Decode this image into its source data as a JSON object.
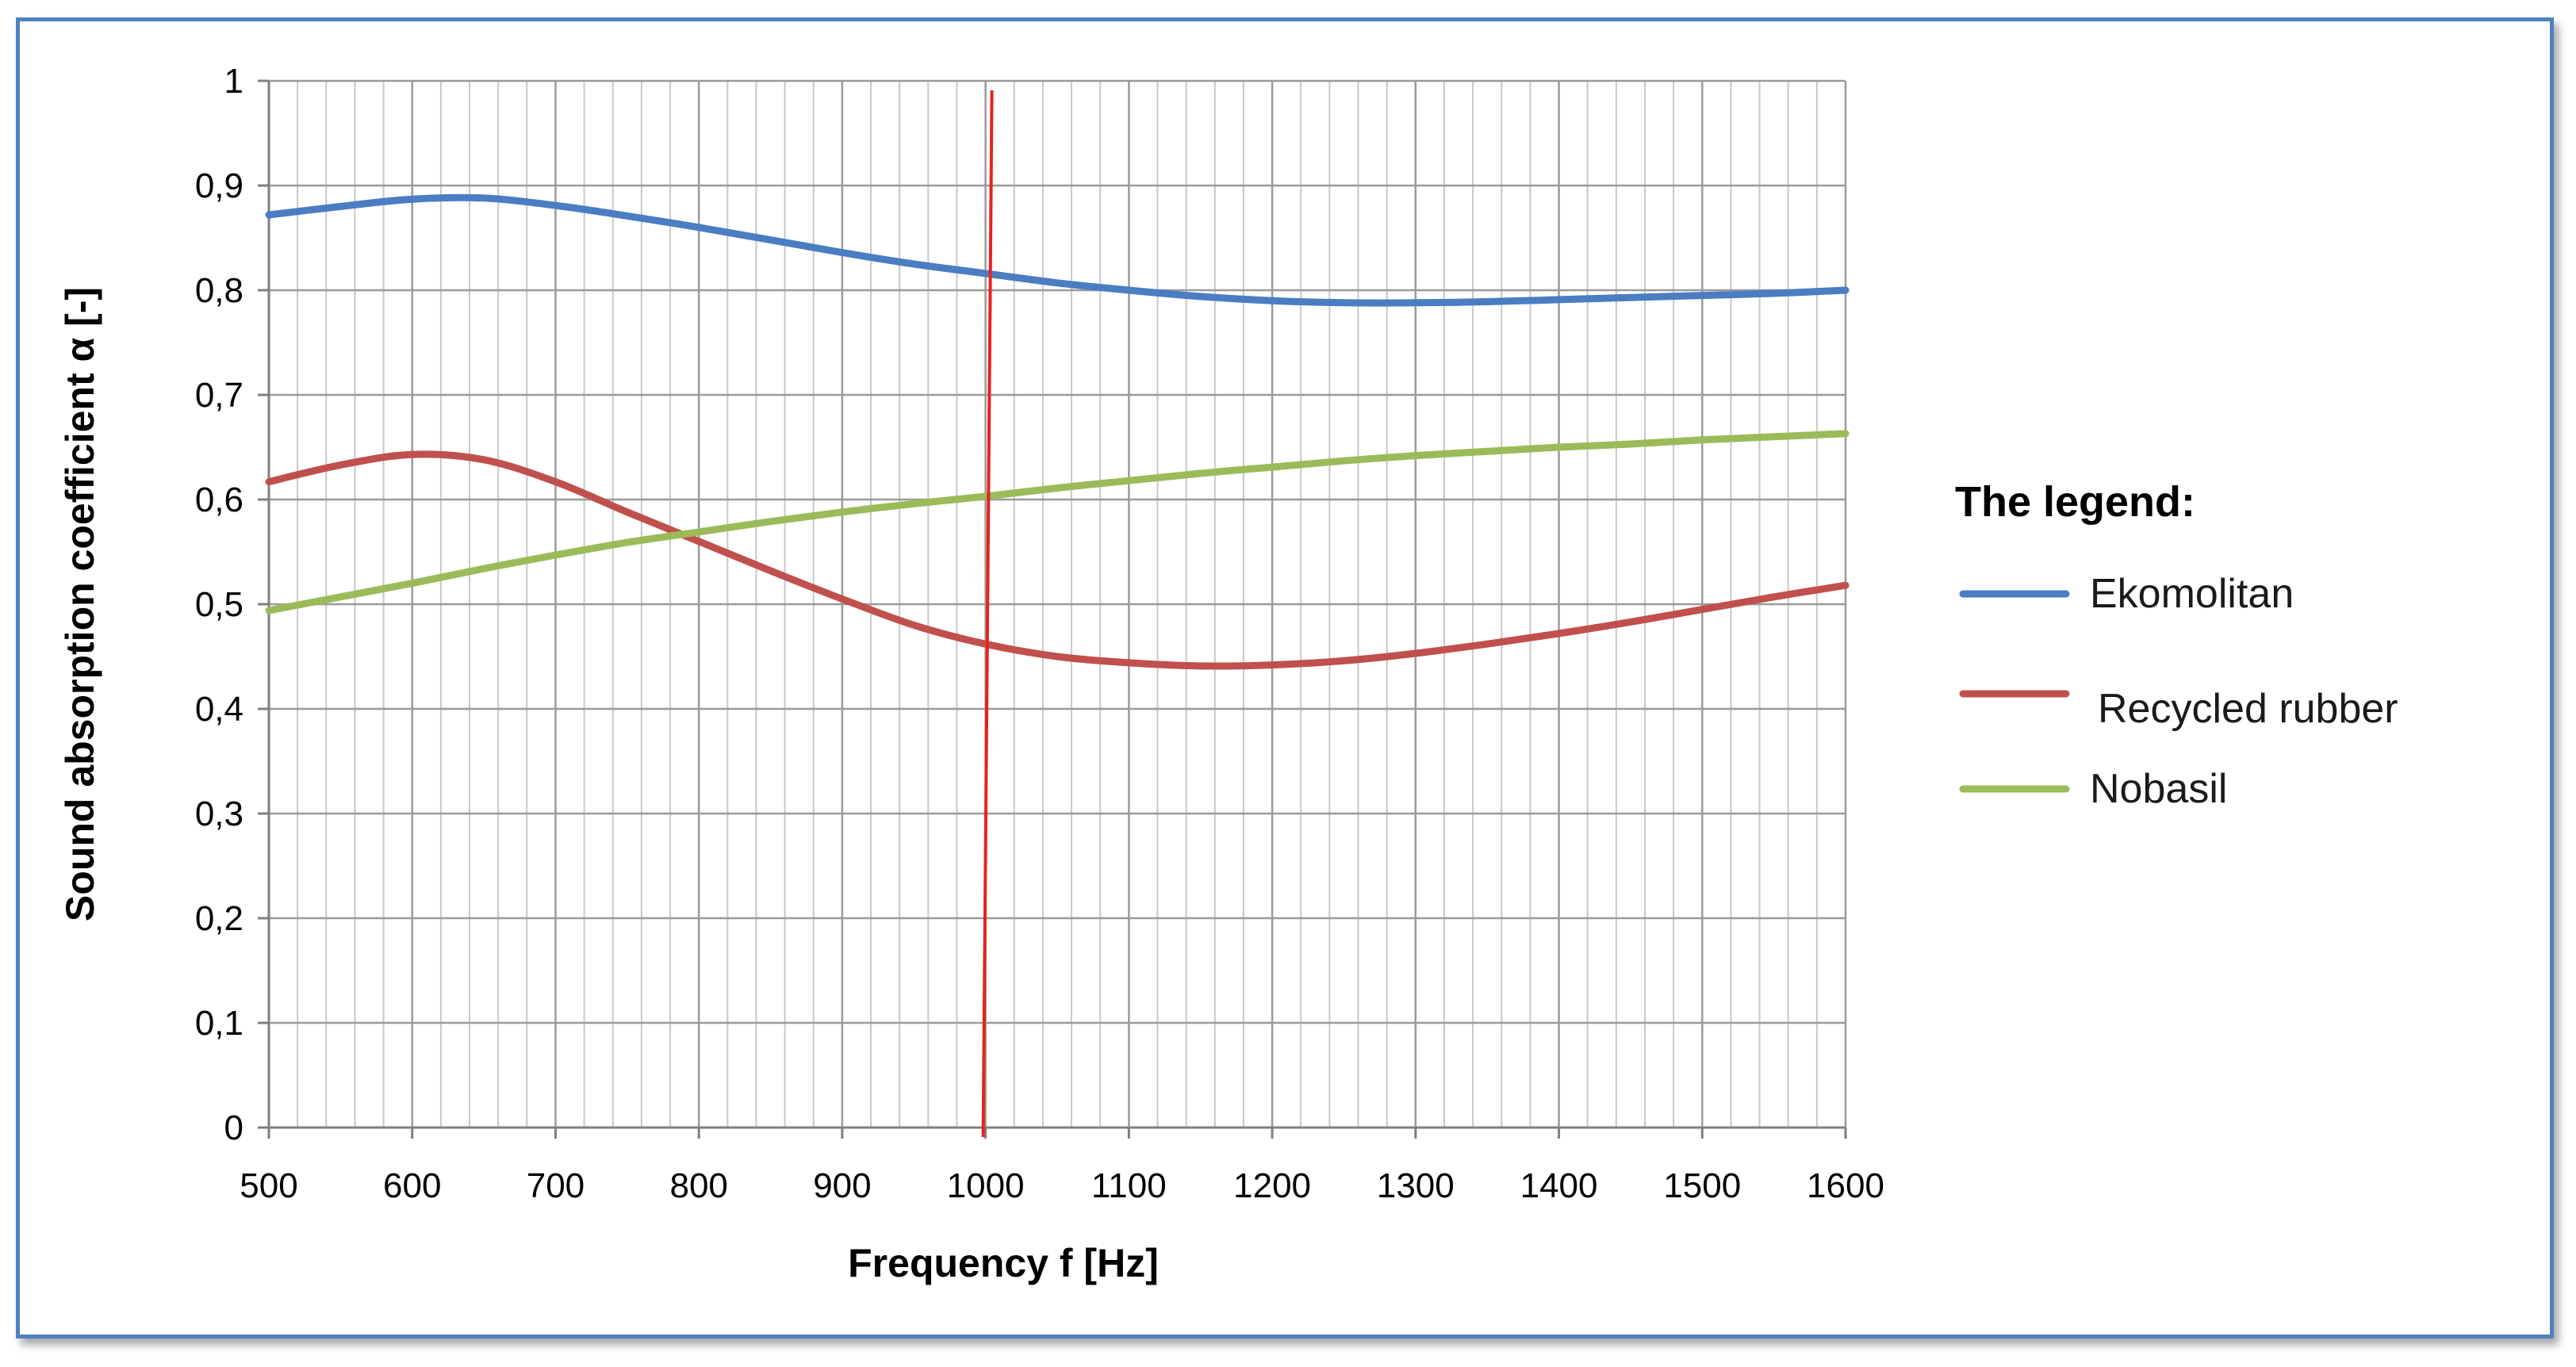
{
  "chart_data": {
    "type": "line",
    "title": "",
    "xlabel": "Frequency f [Hz]",
    "ylabel": "Sound absorption coefficient α [-]",
    "xlim": [
      500,
      1600
    ],
    "ylim": [
      0,
      1
    ],
    "x_ticks": [
      "500",
      "600",
      "700",
      "800",
      "900",
      "1000",
      "1100",
      "1200",
      "1300",
      "1400",
      "1500",
      "1600"
    ],
    "y_ticks": [
      "0",
      "0,1",
      "0,2",
      "0,3",
      "0,4",
      "0,5",
      "0,6",
      "0,7",
      "0,8",
      "0,9",
      "1"
    ],
    "grid": true,
    "legend_title": "The legend:",
    "legend_position": "right",
    "series": [
      {
        "name": "Ekomolitan",
        "color": "#4a7dc1",
        "x": [
          500,
          550,
          600,
          650,
          700,
          750,
          800,
          850,
          900,
          950,
          1000,
          1050,
          1100,
          1150,
          1200,
          1250,
          1300,
          1350,
          1400,
          1450,
          1500,
          1550,
          1600
        ],
        "y": [
          0.872,
          0.88,
          0.887,
          0.888,
          0.881,
          0.871,
          0.86,
          0.848,
          0.836,
          0.825,
          0.816,
          0.807,
          0.8,
          0.794,
          0.79,
          0.788,
          0.788,
          0.789,
          0.791,
          0.793,
          0.795,
          0.797,
          0.8
        ]
      },
      {
        "name": "Recycled rubber",
        "color": "#c0504d",
        "x": [
          500,
          550,
          600,
          650,
          700,
          750,
          800,
          850,
          900,
          950,
          1000,
          1050,
          1100,
          1150,
          1200,
          1250,
          1300,
          1350,
          1400,
          1450,
          1500,
          1550,
          1600
        ],
        "y": [
          0.617,
          0.633,
          0.643,
          0.638,
          0.617,
          0.588,
          0.56,
          0.532,
          0.505,
          0.48,
          0.462,
          0.45,
          0.444,
          0.441,
          0.442,
          0.446,
          0.453,
          0.462,
          0.472,
          0.483,
          0.495,
          0.507,
          0.518
        ]
      },
      {
        "name": "Nobasil",
        "color": "#9bbb59",
        "x": [
          500,
          550,
          600,
          650,
          700,
          750,
          800,
          850,
          900,
          950,
          1000,
          1050,
          1100,
          1150,
          1200,
          1250,
          1300,
          1350,
          1400,
          1450,
          1500,
          1550,
          1600
        ],
        "y": [
          0.494,
          0.507,
          0.52,
          0.534,
          0.547,
          0.559,
          0.569,
          0.579,
          0.588,
          0.596,
          0.603,
          0.611,
          0.618,
          0.625,
          0.631,
          0.637,
          0.642,
          0.646,
          0.65,
          0.653,
          0.657,
          0.66,
          0.663
        ]
      }
    ],
    "annotations": [
      {
        "type": "vertical-line",
        "x": 1000,
        "color": "#e8211d"
      }
    ]
  }
}
